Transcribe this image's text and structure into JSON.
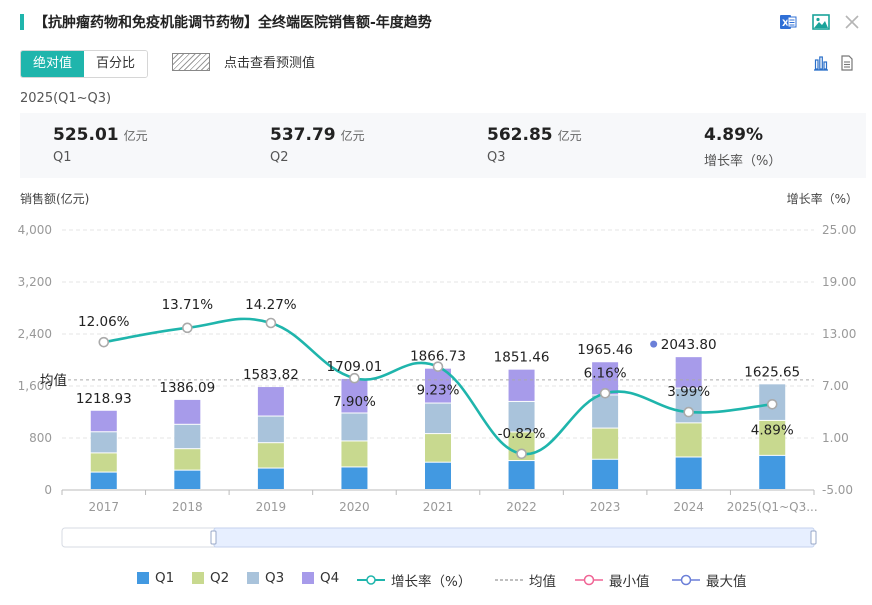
{
  "header": {
    "title": "【抗肿瘤药物和免疫机能调节药物】全终端医院销售额-年度趋势",
    "icons": [
      "excel-export-icon",
      "image-export-icon",
      "close-icon"
    ]
  },
  "controls": {
    "tabs": [
      {
        "label": "绝对值",
        "active": true
      },
      {
        "label": "百分比",
        "active": false
      }
    ],
    "forecast_label": "点击查看预测值",
    "tool_icons": [
      "bar-chart-icon",
      "document-icon"
    ]
  },
  "summary": {
    "period": "2025(Q1~Q3)",
    "cards": [
      {
        "value": "525.01",
        "unit": "亿元",
        "label": "Q1"
      },
      {
        "value": "537.79",
        "unit": "亿元",
        "label": "Q2"
      },
      {
        "value": "562.85",
        "unit": "亿元",
        "label": "Q3"
      },
      {
        "value": "4.89%",
        "unit": "",
        "label": "增长率（%）"
      }
    ]
  },
  "colors": {
    "accent": "#1fb5ac",
    "q1": "#4299e1",
    "q2": "#c8d98f",
    "q3": "#a9c3db",
    "q4": "#a79bea",
    "growth_line": "#1fb5ac",
    "min_marker": "#f06595",
    "max_marker": "#6b7fd8",
    "mean_line": "#aaaaaa"
  },
  "chart_data": {
    "type": "bar",
    "stacked": true,
    "categories": [
      "2017",
      "2018",
      "2019",
      "2020",
      "2021",
      "2022",
      "2023",
      "2024",
      "2025(Q1~Q3..."
    ],
    "series": [
      {
        "name": "Q1",
        "values": [
          268,
          298,
          330,
          347,
          420,
          445,
          465,
          500,
          525.01
        ]
      },
      {
        "name": "Q2",
        "values": [
          295,
          330,
          390,
          400,
          440,
          440,
          480,
          525,
          537.79
        ]
      },
      {
        "name": "Q3",
        "values": [
          325,
          375,
          410,
          430,
          470,
          470,
          510,
          535,
          562.85
        ]
      },
      {
        "name": "Q4",
        "values": [
          330.93,
          383.09,
          453.82,
          532.01,
          536.73,
          496.46,
          510.46,
          483.8,
          0
        ]
      }
    ],
    "totals": [
      "1218.93",
      "1386.09",
      "1583.82",
      "1709.01",
      "1866.73",
      "1851.46",
      "1965.46",
      "2043.80",
      "1625.65"
    ],
    "growth_rate": {
      "name": "增长率（%）",
      "values": [
        12.06,
        13.71,
        14.27,
        7.9,
        9.23,
        -0.82,
        6.16,
        3.99,
        4.89
      ],
      "labels": [
        "12.06%",
        "13.71%",
        "14.27%",
        "7.90%",
        "9.23%",
        "-0.82%",
        "6.16%",
        "3.99%",
        "4.89%"
      ]
    },
    "mean": {
      "label": "均值",
      "value": 1694.6
    },
    "max_index": 7,
    "ylabel": "销售额(亿元)",
    "ylabel_right": "增长率（%）",
    "y_ticks": [
      "0",
      "800",
      "1,600",
      "2,400",
      "3,200",
      "4,000"
    ],
    "ylim": [
      0,
      4000
    ],
    "y_right_ticks": [
      "-5.00",
      "1.00",
      "7.00",
      "13.00",
      "19.00",
      "25.00"
    ],
    "ylim_right": [
      -5,
      25
    ],
    "legend": [
      "Q1",
      "Q2",
      "Q3",
      "Q4",
      "增长率（%）",
      "均值",
      "最小值",
      "最大值"
    ]
  }
}
